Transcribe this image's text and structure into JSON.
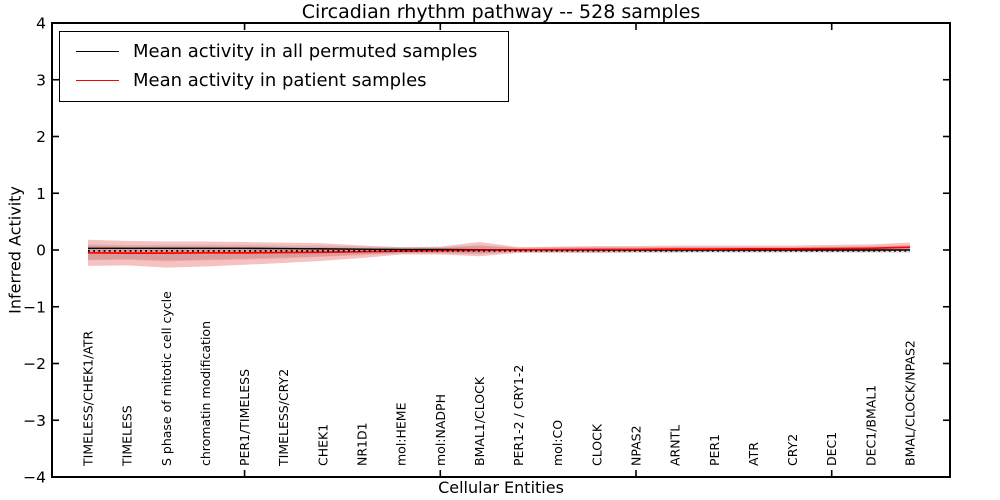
{
  "title": "Circadian rhythm pathway -- 528 samples",
  "axes": {
    "xlabel": "Cellular Entities",
    "ylabel": "Inferred Activity",
    "ytick_labels": [
      "4",
      "3",
      "2",
      "1",
      "0",
      "−1",
      "−2",
      "−3",
      "−4"
    ],
    "ytick_values": [
      4,
      3,
      2,
      1,
      0,
      -1,
      -2,
      -3,
      -4
    ],
    "ylim": [
      -4,
      4
    ],
    "grid": false
  },
  "legend": {
    "position": "upper left",
    "items": [
      {
        "label": "Mean activity in all permuted samples",
        "color": "#000000"
      },
      {
        "label": "Mean activity in patient samples",
        "color": "#ff0000"
      }
    ]
  },
  "chart_data": {
    "type": "line",
    "title": "Circadian rhythm pathway -- 528 samples",
    "xlabel": "Cellular Entities",
    "ylabel": "Inferred Activity",
    "ylim": [
      -4,
      4
    ],
    "legend_position": "upper left",
    "categories": [
      "TIMELESS/CHEK1/ATR",
      "TIMELESS",
      "S phase of mitotic cell cycle",
      "chromatin modification",
      "PER1/TIMELESS",
      "TIMELESS/CRY2",
      "CHEK1",
      "NR1D1",
      "mol:HEME",
      "mol:NADPH",
      "BMAL1/CLOCK",
      "PER1-2 / CRY1-2",
      "mol:CO",
      "CLOCK",
      "NPAS2",
      "ARNTL",
      "PER1",
      "ATR",
      "CRY2",
      "DEC1",
      "DEC1/BMAL1",
      "BMAL/CLOCK/NPAS2"
    ],
    "x_major_tick_indices": [
      4,
      9,
      14,
      19
    ],
    "series": [
      {
        "name": "Mean activity in all permuted samples",
        "color": "#000000",
        "style": "solid",
        "width": 1.4,
        "values": [
          0.03,
          0.03,
          0.03,
          0.03,
          0.03,
          0.025,
          0.02,
          0.015,
          0.01,
          0.01,
          0.005,
          0.005,
          0,
          0,
          0,
          0,
          0,
          0,
          0,
          0,
          0,
          0
        ]
      },
      {
        "name": "Mean activity in patient samples",
        "color": "#ff0000",
        "style": "solid",
        "width": 1.7,
        "values": [
          -0.05,
          -0.055,
          -0.055,
          -0.05,
          -0.05,
          -0.045,
          -0.04,
          -0.03,
          -0.02,
          -0.01,
          -0.005,
          0,
          0.005,
          0.01,
          0.01,
          0.015,
          0.015,
          0.02,
          0.02,
          0.025,
          0.03,
          0.05
        ]
      },
      {
        "name": "zero-reference",
        "color": "#000000",
        "style": "dotted",
        "width": 1.7,
        "values": [
          0,
          0,
          0,
          0,
          0,
          0,
          0,
          0,
          0,
          0,
          0,
          0,
          0,
          0,
          0,
          0,
          0,
          0,
          0,
          0,
          0,
          0
        ]
      }
    ],
    "bands": [
      {
        "name": "patient-band-outer",
        "color": "#e03131",
        "opacity": 0.3,
        "upper": [
          0.18,
          0.16,
          0.15,
          0.15,
          0.14,
          0.13,
          0.12,
          0.08,
          0.05,
          0.06,
          0.14,
          0.05,
          0.06,
          0.07,
          0.07,
          0.08,
          0.08,
          0.08,
          0.08,
          0.09,
          0.1,
          0.13
        ],
        "lower": [
          -0.28,
          -0.27,
          -0.31,
          -0.29,
          -0.26,
          -0.23,
          -0.19,
          -0.14,
          -0.08,
          -0.08,
          -0.11,
          -0.05,
          -0.05,
          -0.05,
          -0.04,
          -0.04,
          -0.03,
          -0.03,
          -0.03,
          -0.03,
          -0.03,
          0.0
        ]
      },
      {
        "name": "patient-band-inner",
        "color": "#e03131",
        "opacity": 0.18,
        "upper": [
          0.08,
          0.06,
          0.06,
          0.06,
          0.05,
          0.05,
          0.05,
          0.03,
          0.02,
          0.03,
          0.08,
          0.03,
          0.04,
          0.04,
          0.04,
          0.05,
          0.05,
          0.05,
          0.05,
          0.06,
          0.07,
          0.09
        ],
        "lower": [
          -0.18,
          -0.17,
          -0.2,
          -0.18,
          -0.17,
          -0.15,
          -0.12,
          -0.09,
          -0.05,
          -0.05,
          -0.06,
          -0.03,
          -0.03,
          -0.02,
          -0.02,
          -0.02,
          -0.01,
          -0.01,
          -0.01,
          -0.01,
          -0.01,
          0.02
        ]
      },
      {
        "name": "permuted-band",
        "color": "#808080",
        "opacity": 0.22,
        "upper": [
          0.1,
          0.09,
          0.09,
          0.09,
          0.09,
          0.08,
          0.08,
          0.06,
          0.05,
          0.05,
          0.08,
          0.04,
          0.05,
          0.05,
          0.05,
          0.05,
          0.05,
          0.05,
          0.05,
          0.05,
          0.05,
          0.06
        ],
        "lower": [
          -0.17,
          -0.16,
          -0.18,
          -0.17,
          -0.15,
          -0.13,
          -0.11,
          -0.08,
          -0.06,
          -0.06,
          -0.07,
          -0.04,
          -0.04,
          -0.05,
          -0.05,
          -0.05,
          -0.05,
          -0.05,
          -0.05,
          -0.05,
          -0.05,
          -0.05
        ]
      }
    ]
  },
  "colors": {
    "spine": "#000000",
    "background": "#ffffff",
    "text": "#000000"
  }
}
